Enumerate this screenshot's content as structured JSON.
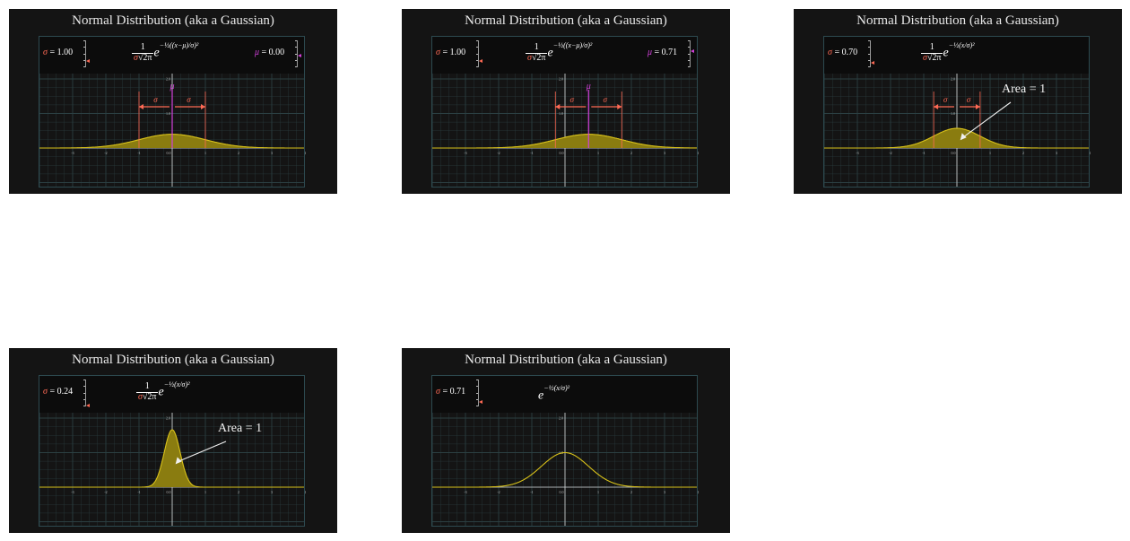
{
  "colors": {
    "curve": "#d9c21a",
    "fill": "#8a7c10",
    "sigma": "#ff6a55",
    "mu": "#d040d8",
    "grid": "#2b3f42",
    "axis": "#d8d8d8"
  },
  "x_ticks": [
    "-3",
    "-2",
    "-1",
    "0.0",
    "1",
    "2",
    "3",
    "4"
  ],
  "y_ticks": [
    "2.0",
    "1.0"
  ],
  "panels": [
    {
      "title": "Normal Distribution (aka a Gaussian)",
      "sigma_label": "σ",
      "sigma_value": "= 1.00",
      "mu_label": "μ",
      "mu_value": "= 0.00",
      "formula_num": "1",
      "formula_den_sigma": "σ",
      "formula_den_rest": "√2π",
      "formula_base": "e",
      "formula_exp": "−½((x−μ)/σ)²",
      "area_label": "",
      "curve": {
        "mu": 0.0,
        "sigma": 1.0,
        "normalized": true,
        "filled": true,
        "show_sigma_markers": true,
        "show_mu_marker": true
      }
    },
    {
      "title": "Normal Distribution (aka a Gaussian)",
      "sigma_label": "σ",
      "sigma_value": "= 1.00",
      "mu_label": "μ",
      "mu_value": "= 0.71",
      "formula_num": "1",
      "formula_den_sigma": "σ",
      "formula_den_rest": "√2π",
      "formula_base": "e",
      "formula_exp": "−½((x−μ)/σ)²",
      "area_label": "",
      "curve": {
        "mu": 0.71,
        "sigma": 1.0,
        "normalized": true,
        "filled": true,
        "show_sigma_markers": true,
        "show_mu_marker": true
      }
    },
    {
      "title": "Normal Distribution (aka a Gaussian)",
      "sigma_label": "σ",
      "sigma_value": "= 0.70",
      "mu_label": "",
      "mu_value": "",
      "formula_num": "1",
      "formula_den_sigma": "σ",
      "formula_den_rest": "√2π",
      "formula_base": "e",
      "formula_exp": "−½(x/σ)²",
      "area_label": "Area = 1",
      "curve": {
        "mu": 0.0,
        "sigma": 0.7,
        "normalized": true,
        "filled": true,
        "show_sigma_markers": true,
        "show_mu_marker": false
      }
    },
    {
      "title": "Normal Distribution (aka a Gaussian)",
      "sigma_label": "σ",
      "sigma_value": "= 0.24",
      "mu_label": "",
      "mu_value": "",
      "formula_num": "1",
      "formula_den_sigma": "σ",
      "formula_den_rest": "√2π",
      "formula_base": "e",
      "formula_exp": "−½(x/σ)²",
      "area_label": "Area = 1",
      "curve": {
        "mu": 0.0,
        "sigma": 0.24,
        "normalized": true,
        "filled": true,
        "show_sigma_markers": false,
        "show_mu_marker": false
      }
    },
    {
      "title": "Normal Distribution (aka a Gaussian)",
      "sigma_label": "σ",
      "sigma_value": "= 0.71",
      "mu_label": "",
      "mu_value": "",
      "formula_num": "",
      "formula_den_sigma": "",
      "formula_den_rest": "",
      "formula_base": "e",
      "formula_exp": "−½(x/σ)²",
      "area_label": "",
      "curve": {
        "mu": 0.0,
        "sigma": 0.71,
        "normalized": false,
        "filled": false,
        "show_sigma_markers": false,
        "show_mu_marker": false
      }
    }
  ]
}
